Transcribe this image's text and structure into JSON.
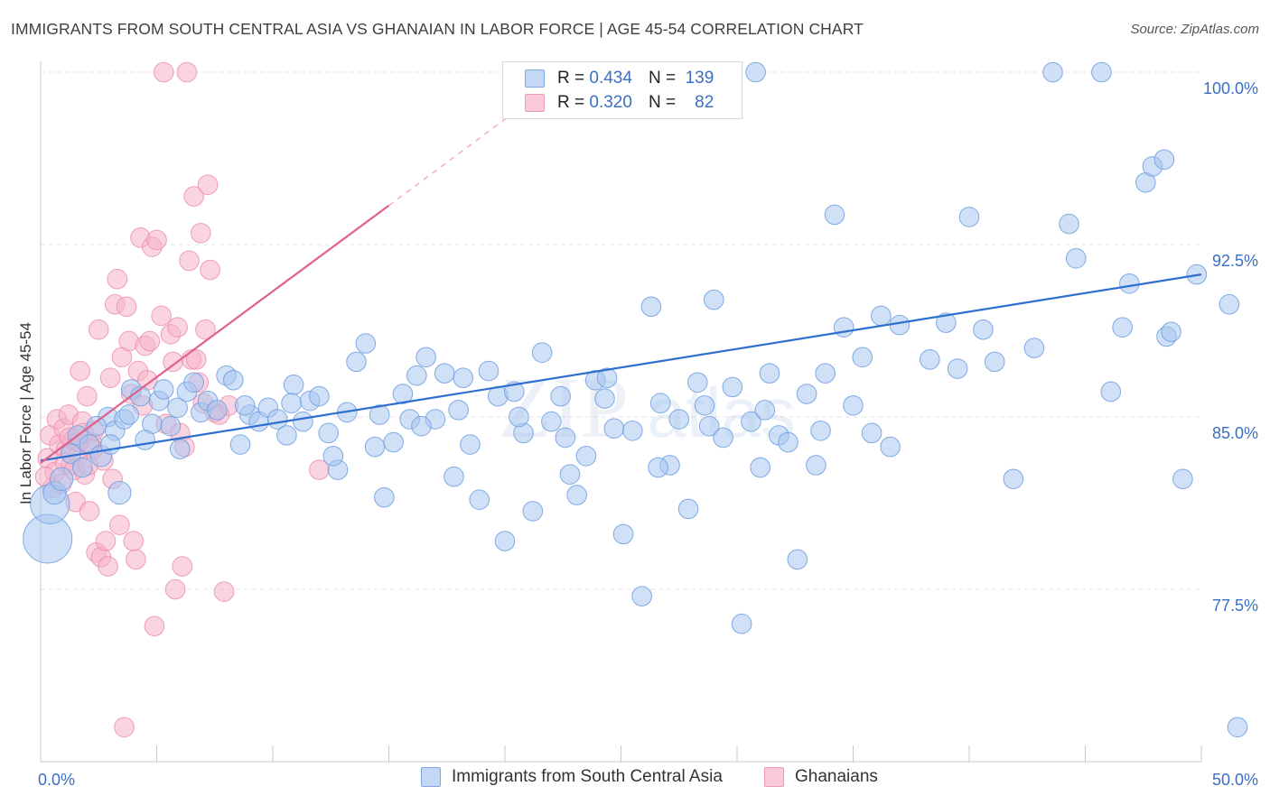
{
  "title": "IMMIGRANTS FROM SOUTH CENTRAL ASIA VS GHANAIAN IN LABOR FORCE | AGE 45-54 CORRELATION CHART",
  "source": "Source: ZipAtlas.com",
  "watermark": {
    "zip": "ZIP",
    "atlas": "atlas"
  },
  "legend": {
    "rows": [
      {
        "r_label": "R =",
        "r_value": "0.434",
        "n_label": "N =",
        "n_value": "139"
      },
      {
        "r_label": "R =",
        "r_value": "0.320",
        "n_label": "N =",
        "n_value": "82"
      }
    ]
  },
  "bottom_legend": [
    "Immigrants from South Central Asia",
    "Ghanaians"
  ],
  "colors": {
    "blue_fill": "#a8c6f0",
    "blue_stroke": "#6f9ee0",
    "blue_line": "#2e6fcf",
    "pink_fill": "#f6b3c8",
    "pink_stroke": "#ec8fae",
    "pink_line": "#e0608e",
    "axis_text": "#3a6fc4",
    "grid": "#e6e6e6"
  },
  "chart_data": {
    "type": "scatter",
    "title": "IMMIGRANTS FROM SOUTH CENTRAL ASIA VS GHANAIAN IN LABOR FORCE | AGE 45-54 CORRELATION CHART",
    "xlabel": "",
    "ylabel": "In Labor Force | Age 45-54",
    "xlim": [
      0,
      50
    ],
    "ylim": [
      70.5,
      100.7
    ],
    "x_tick_labels": [
      "0.0%",
      "50.0%"
    ],
    "y_ticks": [
      77.5,
      85.0,
      92.5,
      100.0
    ],
    "y_tick_labels": [
      "77.5%",
      "85.0%",
      "92.5%",
      "100.0%"
    ],
    "grid": true,
    "legend_position": "top-center",
    "series": [
      {
        "name": "Immigrants from South Central Asia",
        "color": "#a8c6f0",
        "trend": {
          "x": [
            0,
            50
          ],
          "y": [
            83.1,
            91.2
          ]
        },
        "points": [
          [
            0.3,
            79.7,
            3
          ],
          [
            0.4,
            81.2,
            2.4
          ],
          [
            0.6,
            81.7,
            1.4
          ],
          [
            0.9,
            82.3,
            1.4
          ],
          [
            1.3,
            83.4,
            1.2
          ],
          [
            1.6,
            84.2,
            1.2
          ],
          [
            2.1,
            83.8,
            1.2
          ],
          [
            2.6,
            83.3,
            1.3
          ],
          [
            2.9,
            85.0,
            1.2
          ],
          [
            3.2,
            84.4,
            1.2
          ],
          [
            3.4,
            81.7,
            1.4
          ],
          [
            3.6,
            84.9,
            1.2
          ],
          [
            3.9,
            86.2,
            1.2
          ],
          [
            4.3,
            85.9,
            1.2
          ],
          [
            4.8,
            84.7,
            1.2
          ],
          [
            5.1,
            85.7,
            1.2
          ],
          [
            5.3,
            86.2,
            1.2
          ],
          [
            5.6,
            84.6,
            1.2
          ],
          [
            5.9,
            85.4,
            1.2
          ],
          [
            6.3,
            86.1,
            1.2
          ],
          [
            6.6,
            86.5,
            1.2
          ],
          [
            6.9,
            85.2,
            1.2
          ],
          [
            7.2,
            85.7,
            1.2
          ],
          [
            7.6,
            85.3,
            1.2
          ],
          [
            8.0,
            86.8,
            1.2
          ],
          [
            8.3,
            86.6,
            1.2
          ],
          [
            8.6,
            83.8,
            1.2
          ],
          [
            9.0,
            85.1,
            1.2
          ],
          [
            9.4,
            84.8,
            1.2
          ],
          [
            9.8,
            85.4,
            1.2
          ],
          [
            10.2,
            84.9,
            1.2
          ],
          [
            10.6,
            84.2,
            1.2
          ],
          [
            10.9,
            86.4,
            1.2
          ],
          [
            11.3,
            84.8,
            1.2
          ],
          [
            11.6,
            85.7,
            1.2
          ],
          [
            12.0,
            85.9,
            1.2
          ],
          [
            12.4,
            84.3,
            1.2
          ],
          [
            12.8,
            82.7,
            1.2
          ],
          [
            13.2,
            85.2,
            1.2
          ],
          [
            13.6,
            87.4,
            1.2
          ],
          [
            14.0,
            88.2,
            1.2
          ],
          [
            14.4,
            83.7,
            1.2
          ],
          [
            14.8,
            81.5,
            1.2
          ],
          [
            15.2,
            83.9,
            1.2
          ],
          [
            15.6,
            86.0,
            1.2
          ],
          [
            15.9,
            84.9,
            1.2
          ],
          [
            16.2,
            86.8,
            1.2
          ],
          [
            16.6,
            87.6,
            1.2
          ],
          [
            17.0,
            84.9,
            1.2
          ],
          [
            17.4,
            86.9,
            1.2
          ],
          [
            17.8,
            82.4,
            1.2
          ],
          [
            18.2,
            86.7,
            1.2
          ],
          [
            18.5,
            83.8,
            1.2
          ],
          [
            18.9,
            81.4,
            1.2
          ],
          [
            19.3,
            87.0,
            1.2
          ],
          [
            19.7,
            85.9,
            1.2
          ],
          [
            20.0,
            79.6,
            1.2
          ],
          [
            20.4,
            86.1,
            1.2
          ],
          [
            20.8,
            84.3,
            1.2
          ],
          [
            21.2,
            80.9,
            1.2
          ],
          [
            21.6,
            87.8,
            1.2
          ],
          [
            22.0,
            84.8,
            1.2
          ],
          [
            22.4,
            85.9,
            1.2
          ],
          [
            22.8,
            82.5,
            1.2
          ],
          [
            23.1,
            81.6,
            1.2
          ],
          [
            23.5,
            83.3,
            1.2
          ],
          [
            23.9,
            86.6,
            1.2
          ],
          [
            24.3,
            85.8,
            1.2
          ],
          [
            24.7,
            84.5,
            1.2
          ],
          [
            25.1,
            79.9,
            1.2
          ],
          [
            25.5,
            84.4,
            1.2
          ],
          [
            25.9,
            77.2,
            1.2
          ],
          [
            26.3,
            89.8,
            1.2
          ],
          [
            26.7,
            85.6,
            1.2
          ],
          [
            27.1,
            82.9,
            1.2
          ],
          [
            27.5,
            84.9,
            1.2
          ],
          [
            27.9,
            81.0,
            1.2
          ],
          [
            28.3,
            86.5,
            1.2
          ],
          [
            28.6,
            85.5,
            1.2
          ],
          [
            29.0,
            90.1,
            1.2
          ],
          [
            29.4,
            84.1,
            1.2
          ],
          [
            29.8,
            86.3,
            1.2
          ],
          [
            30.2,
            76.0,
            1.2
          ],
          [
            30.6,
            84.8,
            1.2
          ],
          [
            31.0,
            82.8,
            1.2
          ],
          [
            31.4,
            86.9,
            1.2
          ],
          [
            31.8,
            84.2,
            1.2
          ],
          [
            32.2,
            83.9,
            1.2
          ],
          [
            32.6,
            78.8,
            1.2
          ],
          [
            33.0,
            86.0,
            1.2
          ],
          [
            33.4,
            82.9,
            1.2
          ],
          [
            33.8,
            86.9,
            1.2
          ],
          [
            34.2,
            93.8,
            1.2
          ],
          [
            34.6,
            88.9,
            1.2
          ],
          [
            35.0,
            85.5,
            1.2
          ],
          [
            35.4,
            87.6,
            1.2
          ],
          [
            35.8,
            84.3,
            1.2
          ],
          [
            36.2,
            89.4,
            1.2
          ],
          [
            36.6,
            83.7,
            1.2
          ],
          [
            37.0,
            89.0,
            1.2
          ],
          [
            38.3,
            87.5,
            1.2
          ],
          [
            39.0,
            89.1,
            1.2
          ],
          [
            39.5,
            87.1,
            1.2
          ],
          [
            40.0,
            93.7,
            1.2
          ],
          [
            40.6,
            88.8,
            1.2
          ],
          [
            41.1,
            87.4,
            1.2
          ],
          [
            41.9,
            82.3,
            1.2
          ],
          [
            42.8,
            88.0,
            1.2
          ],
          [
            43.6,
            100.0,
            1.2
          ],
          [
            44.3,
            93.4,
            1.2
          ],
          [
            44.6,
            91.9,
            1.2
          ],
          [
            45.7,
            100.0,
            1.2
          ],
          [
            46.1,
            86.1,
            1.2
          ],
          [
            46.6,
            88.9,
            1.2
          ],
          [
            46.9,
            90.8,
            1.2
          ],
          [
            47.6,
            95.2,
            1.2
          ],
          [
            47.9,
            95.9,
            1.2
          ],
          [
            48.4,
            96.2,
            1.2
          ],
          [
            48.5,
            88.5,
            1.2
          ],
          [
            48.7,
            88.7,
            1.2
          ],
          [
            49.2,
            82.3,
            1.2
          ],
          [
            49.8,
            91.2,
            1.2
          ],
          [
            51.2,
            89.9,
            1.2
          ],
          [
            52.0,
            71.5,
            1.2
          ],
          [
            30.8,
            100.0,
            1.2
          ],
          [
            3.0,
            83.8,
            1.2
          ],
          [
            3.8,
            85.1,
            1.2
          ],
          [
            2.4,
            84.6,
            1.2
          ],
          [
            1.8,
            82.8,
            1.2
          ],
          [
            4.5,
            84.0,
            1.2
          ],
          [
            6.0,
            83.6,
            1.2
          ],
          [
            8.8,
            85.5,
            1.2
          ],
          [
            10.8,
            85.6,
            1.2
          ],
          [
            12.6,
            83.3,
            1.2
          ],
          [
            14.6,
            85.1,
            1.2
          ],
          [
            16.4,
            84.6,
            1.2
          ],
          [
            18.0,
            85.3,
            1.2
          ],
          [
            20.6,
            85.0,
            1.2
          ],
          [
            22.6,
            84.1,
            1.2
          ],
          [
            24.4,
            86.7,
            1.2
          ],
          [
            26.6,
            82.8,
            1.2
          ],
          [
            28.8,
            84.6,
            1.2
          ],
          [
            31.2,
            85.3,
            1.2
          ],
          [
            33.6,
            84.4,
            1.2
          ]
        ]
      },
      {
        "name": "Ghanaians",
        "color": "#f6b3c8",
        "trend": {
          "x": [
            0,
            15
          ],
          "y": [
            83.0,
            94.2
          ]
        },
        "trend_dashed": {
          "x": [
            15,
            21
          ],
          "y": [
            94.2,
            98.7
          ]
        },
        "points": [
          [
            0.3,
            83.2,
            1.2
          ],
          [
            0.4,
            84.2,
            1.2
          ],
          [
            0.5,
            81.9,
            1.2
          ],
          [
            0.6,
            82.6,
            1.2
          ],
          [
            0.7,
            84.9,
            1.2
          ],
          [
            0.8,
            83.8,
            1.2
          ],
          [
            0.9,
            82.1,
            1.2
          ],
          [
            1.0,
            84.5,
            1.2
          ],
          [
            1.1,
            83.6,
            1.2
          ],
          [
            1.2,
            85.1,
            1.2
          ],
          [
            1.3,
            82.9,
            1.2
          ],
          [
            1.4,
            84.0,
            1.2
          ],
          [
            1.5,
            81.3,
            1.2
          ],
          [
            1.6,
            83.3,
            1.2
          ],
          [
            1.7,
            87.0,
            1.2
          ],
          [
            1.8,
            84.8,
            1.2
          ],
          [
            1.9,
            82.5,
            1.2
          ],
          [
            2.0,
            85.9,
            1.2
          ],
          [
            2.1,
            80.9,
            1.2
          ],
          [
            2.2,
            83.9,
            1.2
          ],
          [
            2.3,
            84.4,
            1.2
          ],
          [
            2.4,
            79.1,
            1.2
          ],
          [
            2.5,
            88.8,
            1.2
          ],
          [
            2.6,
            78.9,
            1.2
          ],
          [
            2.7,
            83.1,
            1.2
          ],
          [
            2.8,
            79.6,
            1.2
          ],
          [
            2.9,
            78.5,
            1.2
          ],
          [
            3.0,
            86.7,
            1.2
          ],
          [
            3.1,
            82.3,
            1.2
          ],
          [
            3.2,
            89.9,
            1.2
          ],
          [
            3.3,
            91.0,
            1.2
          ],
          [
            3.4,
            80.3,
            1.2
          ],
          [
            3.5,
            87.6,
            1.2
          ],
          [
            3.6,
            71.5,
            1.2
          ],
          [
            3.7,
            89.8,
            1.2
          ],
          [
            3.8,
            88.3,
            1.2
          ],
          [
            3.9,
            86.0,
            1.2
          ],
          [
            4.0,
            79.6,
            1.2
          ],
          [
            4.1,
            78.8,
            1.2
          ],
          [
            4.2,
            87.0,
            1.2
          ],
          [
            4.3,
            92.8,
            1.2
          ],
          [
            4.4,
            85.5,
            1.2
          ],
          [
            4.5,
            88.1,
            1.2
          ],
          [
            4.6,
            86.6,
            1.2
          ],
          [
            4.7,
            88.3,
            1.2
          ],
          [
            4.8,
            92.4,
            1.2
          ],
          [
            4.9,
            75.9,
            1.2
          ],
          [
            5.0,
            92.7,
            1.2
          ],
          [
            5.2,
            89.4,
            1.2
          ],
          [
            5.3,
            100.0,
            1.2
          ],
          [
            5.4,
            84.7,
            1.2
          ],
          [
            5.6,
            88.6,
            1.2
          ],
          [
            5.7,
            87.4,
            1.2
          ],
          [
            5.8,
            77.5,
            1.2
          ],
          [
            5.9,
            88.9,
            1.2
          ],
          [
            6.0,
            84.3,
            1.2
          ],
          [
            6.1,
            78.5,
            1.2
          ],
          [
            6.2,
            83.7,
            1.2
          ],
          [
            6.3,
            100.0,
            1.2
          ],
          [
            6.4,
            91.8,
            1.2
          ],
          [
            6.5,
            87.5,
            1.2
          ],
          [
            6.6,
            94.6,
            1.2
          ],
          [
            6.7,
            87.5,
            1.2
          ],
          [
            6.8,
            86.5,
            1.2
          ],
          [
            6.9,
            93.0,
            1.2
          ],
          [
            7.0,
            85.6,
            1.2
          ],
          [
            7.1,
            88.8,
            1.2
          ],
          [
            7.2,
            95.1,
            1.2
          ],
          [
            7.3,
            91.4,
            1.2
          ],
          [
            7.5,
            85.2,
            1.2
          ],
          [
            7.7,
            85.1,
            1.2
          ],
          [
            7.9,
            77.4,
            1.2
          ],
          [
            12.0,
            82.7,
            1.2
          ],
          [
            0.2,
            82.4,
            1.2
          ],
          [
            1.05,
            83.0,
            1.2
          ],
          [
            1.25,
            84.1,
            1.2
          ],
          [
            1.45,
            82.7,
            1.2
          ],
          [
            1.65,
            83.9,
            1.2
          ],
          [
            1.85,
            84.3,
            1.2
          ],
          [
            2.05,
            82.9,
            1.2
          ],
          [
            2.25,
            83.6,
            1.2
          ],
          [
            8.1,
            85.5,
            1.2
          ]
        ]
      }
    ]
  }
}
